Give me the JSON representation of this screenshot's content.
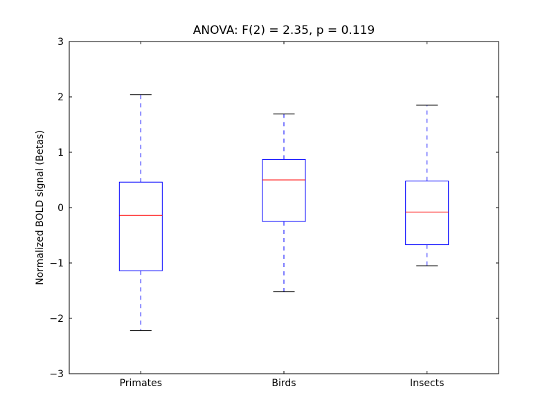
{
  "chart_data": {
    "type": "boxplot",
    "title": "ANOVA: F(2) = 2.35, p = 0.119",
    "xlabel": "",
    "ylabel": "Normalized BOLD signal (Betas)",
    "ylim": [
      -3,
      3
    ],
    "yticks": [
      "3",
      "2",
      "1",
      "0",
      "−1",
      "−2",
      "−3"
    ],
    "ytick_values": [
      3,
      2,
      1,
      0,
      -1,
      -2,
      -3
    ],
    "categories": [
      "Primates",
      "Birds",
      "Insects"
    ],
    "boxes": [
      {
        "whisker_low": -2.22,
        "q1": -1.14,
        "median": -0.14,
        "q3": 0.46,
        "whisker_high": 2.04
      },
      {
        "whisker_low": -1.52,
        "q1": -0.25,
        "median": 0.5,
        "q3": 0.87,
        "whisker_high": 1.69
      },
      {
        "whisker_low": -1.05,
        "q1": -0.67,
        "median": -0.08,
        "q3": 0.48,
        "whisker_high": 1.85
      }
    ],
    "grid": false,
    "colors": {
      "box": "#0000ff",
      "median": "#ff0000",
      "caps": "#000000"
    }
  }
}
